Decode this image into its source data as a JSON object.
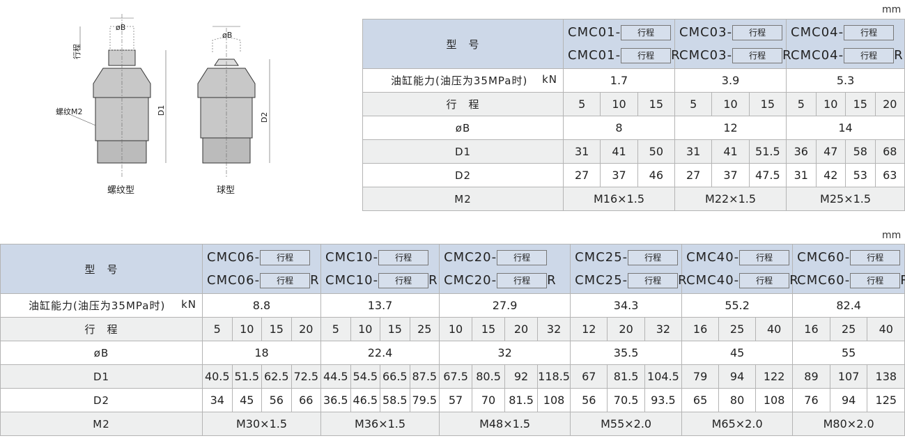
{
  "unit": "mm",
  "drawings": {
    "diameter_label": "øB",
    "stroke_label": "行程",
    "thread_label": "螺纹M2",
    "d1_label": "D1",
    "d2_label": "D2",
    "threaded_caption": "螺纹型",
    "ball_caption": "球型"
  },
  "row_labels": {
    "model": "型　号",
    "force": "油缸能力(油压为35MPa时)",
    "force_unit": "kN",
    "stroke": "行　程",
    "bore": "øB",
    "d1": "D1",
    "d2": "D2",
    "m2": "M2"
  },
  "stroke_box": "行程",
  "suffix_r": "R",
  "table1": [
    {
      "model": "CMC01-",
      "force": "1.7",
      "strokes": [
        "5",
        "10",
        "15"
      ],
      "B": "8",
      "D1": [
        "31",
        "41",
        "50"
      ],
      "D2": [
        "27",
        "37",
        "46"
      ],
      "M2": "M16×1.5"
    },
    {
      "model": "CMC03-",
      "force": "3.9",
      "strokes": [
        "5",
        "10",
        "15"
      ],
      "B": "12",
      "D1": [
        "31",
        "41",
        "51.5"
      ],
      "D2": [
        "27",
        "37",
        "47.5"
      ],
      "M2": "M22×1.5"
    },
    {
      "model": "CMC04-",
      "force": "5.3",
      "strokes": [
        "5",
        "10",
        "15",
        "20"
      ],
      "B": "14",
      "D1": [
        "36",
        "47",
        "58",
        "68"
      ],
      "D2": [
        "31",
        "42",
        "53",
        "63"
      ],
      "M2": "M25×1.5"
    }
  ],
  "table2": [
    {
      "model": "CMC06-",
      "force": "8.8",
      "strokes": [
        "5",
        "10",
        "15",
        "20"
      ],
      "B": "18",
      "D1": [
        "40.5",
        "51.5",
        "62.5",
        "72.5"
      ],
      "D2": [
        "34",
        "45",
        "56",
        "66"
      ],
      "M2": "M30×1.5"
    },
    {
      "model": "CMC10-",
      "force": "13.7",
      "strokes": [
        "5",
        "10",
        "15",
        "25"
      ],
      "B": "22.4",
      "D1": [
        "44.5",
        "54.5",
        "66.5",
        "87.5"
      ],
      "D2": [
        "36.5",
        "46.5",
        "58.5",
        "79.5"
      ],
      "M2": "M36×1.5"
    },
    {
      "model": "CMC20-",
      "force": "27.9",
      "strokes": [
        "10",
        "15",
        "20",
        "32"
      ],
      "B": "32",
      "D1": [
        "67.5",
        "80.5",
        "92",
        "118.5"
      ],
      "D2": [
        "57",
        "70",
        "81.5",
        "108"
      ],
      "M2": "M48×1.5"
    },
    {
      "model": "CMC25-",
      "force": "34.3",
      "strokes": [
        "12",
        "20",
        "32"
      ],
      "B": "35.5",
      "D1": [
        "67",
        "81.5",
        "104.5"
      ],
      "D2": [
        "56",
        "70.5",
        "93.5"
      ],
      "M2": "M55×2.0"
    },
    {
      "model": "CMC40-",
      "force": "55.2",
      "strokes": [
        "16",
        "25",
        "40"
      ],
      "B": "45",
      "D1": [
        "79",
        "94",
        "122"
      ],
      "D2": [
        "65",
        "80",
        "108"
      ],
      "M2": "M65×2.0"
    },
    {
      "model": "CMC60-",
      "force": "82.4",
      "strokes": [
        "16",
        "25",
        "40"
      ],
      "B": "55",
      "D1": [
        "89",
        "107",
        "138"
      ],
      "D2": [
        "76",
        "94",
        "125"
      ],
      "M2": "M80×2.0"
    }
  ]
}
